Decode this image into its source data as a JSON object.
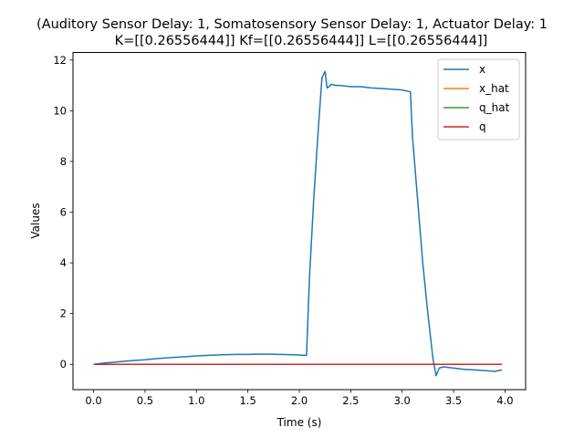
{
  "chart_data": {
    "type": "line",
    "title_line1": "(Auditory Sensor Delay: 1, Somatosensory Sensor Delay: 1, Actuator Delay: 1",
    "title_line2": "K=[[0.26556444]] Kf=[[0.26556444]] L=[[0.26556444]]",
    "xlabel": "Time (s)",
    "ylabel": "Values",
    "xlim": [
      -0.2,
      4.2
    ],
    "ylim": [
      -1.0,
      12.3
    ],
    "xticks": [
      0.0,
      0.5,
      1.0,
      1.5,
      2.0,
      2.5,
      3.0,
      3.5,
      4.0
    ],
    "xtick_labels": [
      "0.0",
      "0.5",
      "1.0",
      "1.5",
      "2.0",
      "2.5",
      "3.0",
      "3.5",
      "4.0"
    ],
    "yticks": [
      0,
      2,
      4,
      6,
      8,
      10,
      12
    ],
    "ytick_labels": [
      "0",
      "2",
      "4",
      "6",
      "8",
      "10",
      "12"
    ],
    "grid": false,
    "legend_position": "top-right",
    "series": [
      {
        "name": "x",
        "color": "#1f77b4",
        "x": [
          0.0,
          0.1,
          0.2,
          0.3,
          0.4,
          0.5,
          0.6,
          0.7,
          0.8,
          0.9,
          1.0,
          1.1,
          1.2,
          1.3,
          1.4,
          1.5,
          1.6,
          1.7,
          1.8,
          1.9,
          2.0,
          2.07,
          2.1,
          2.14,
          2.18,
          2.22,
          2.25,
          2.27,
          2.29,
          2.31,
          2.35,
          2.4,
          2.5,
          2.6,
          2.7,
          2.8,
          2.9,
          3.0,
          3.08,
          3.1,
          3.15,
          3.2,
          3.25,
          3.3,
          3.33,
          3.36,
          3.4,
          3.5,
          3.6,
          3.7,
          3.8,
          3.9,
          3.97
        ],
        "y": [
          0.0,
          0.05,
          0.08,
          0.12,
          0.15,
          0.18,
          0.22,
          0.25,
          0.28,
          0.3,
          0.33,
          0.35,
          0.37,
          0.38,
          0.39,
          0.39,
          0.4,
          0.4,
          0.39,
          0.38,
          0.37,
          0.35,
          3.5,
          6.5,
          9.0,
          11.3,
          11.55,
          10.9,
          10.95,
          11.05,
          11.0,
          11.0,
          10.95,
          10.95,
          10.9,
          10.88,
          10.85,
          10.82,
          10.75,
          9.0,
          6.5,
          4.0,
          2.0,
          0.2,
          -0.45,
          -0.15,
          -0.1,
          -0.15,
          -0.2,
          -0.22,
          -0.25,
          -0.28,
          -0.22
        ]
      },
      {
        "name": "x_hat",
        "color": "#ff7f0e",
        "x": [
          0.0,
          3.97
        ],
        "y": [
          0.0,
          0.0
        ]
      },
      {
        "name": "q_hat",
        "color": "#2ca02c",
        "x": [
          0.0,
          3.97
        ],
        "y": [
          0.0,
          0.0
        ]
      },
      {
        "name": "q",
        "color": "#d62728",
        "x": [
          0.0,
          3.97
        ],
        "y": [
          0.0,
          0.0
        ]
      }
    ]
  }
}
